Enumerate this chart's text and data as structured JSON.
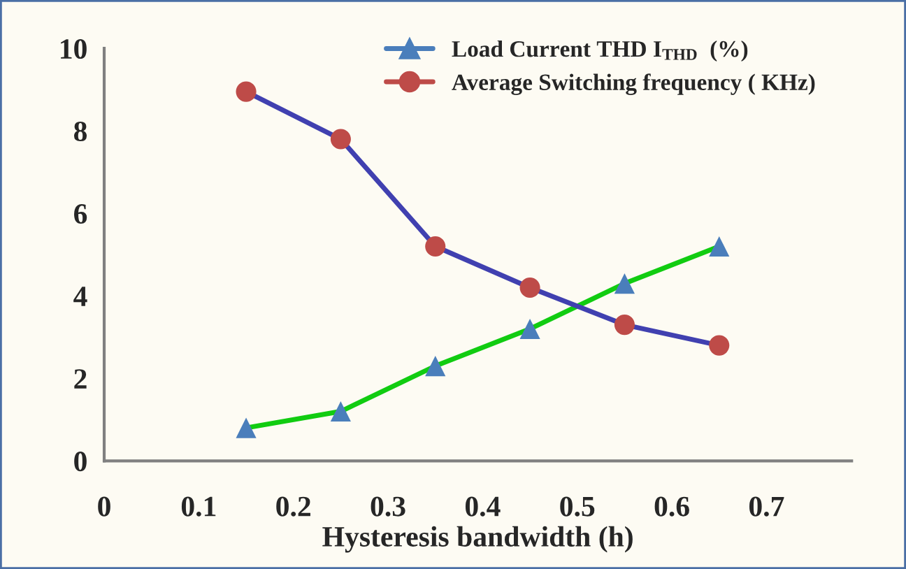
{
  "chart_data": {
    "type": "line",
    "xlabel": "Hysteresis bandwidth (h)",
    "x": [
      0.15,
      0.25,
      0.35,
      0.45,
      0.55,
      0.65
    ],
    "xlim": [
      0,
      0.79
    ],
    "xticks": [
      0,
      0.1,
      0.2,
      0.3,
      0.4,
      0.5,
      0.6,
      0.7
    ],
    "ylim": [
      0,
      10
    ],
    "yticks": [
      0,
      2,
      4,
      6,
      8,
      10
    ],
    "grid": false,
    "legend": "top right",
    "series": [
      {
        "name": "Load Current THD I$_{THD}$  (%)",
        "color": "#11cc11",
        "colors": [
          "#4a7ebb",
          "#4a7ebb",
          "#4a7ebb",
          "#4a7ebb",
          "#4a7ebb",
          "#4a7ebb"
        ],
        "marker": "triangle",
        "values": [
          0.8,
          1.2,
          2.3,
          3.2,
          4.3,
          5.2
        ]
      },
      {
        "name": "Average Switching frequency ( KHz)",
        "color": "#4040b0",
        "colors": [
          "#be4b48",
          "#be4b48",
          "#be4b48",
          "#be4b48",
          "#be4b48",
          "#be4b48"
        ],
        "marker": "circle",
        "values": [
          8.95,
          7.8,
          5.2,
          4.2,
          3.3,
          2.8
        ]
      }
    ]
  }
}
